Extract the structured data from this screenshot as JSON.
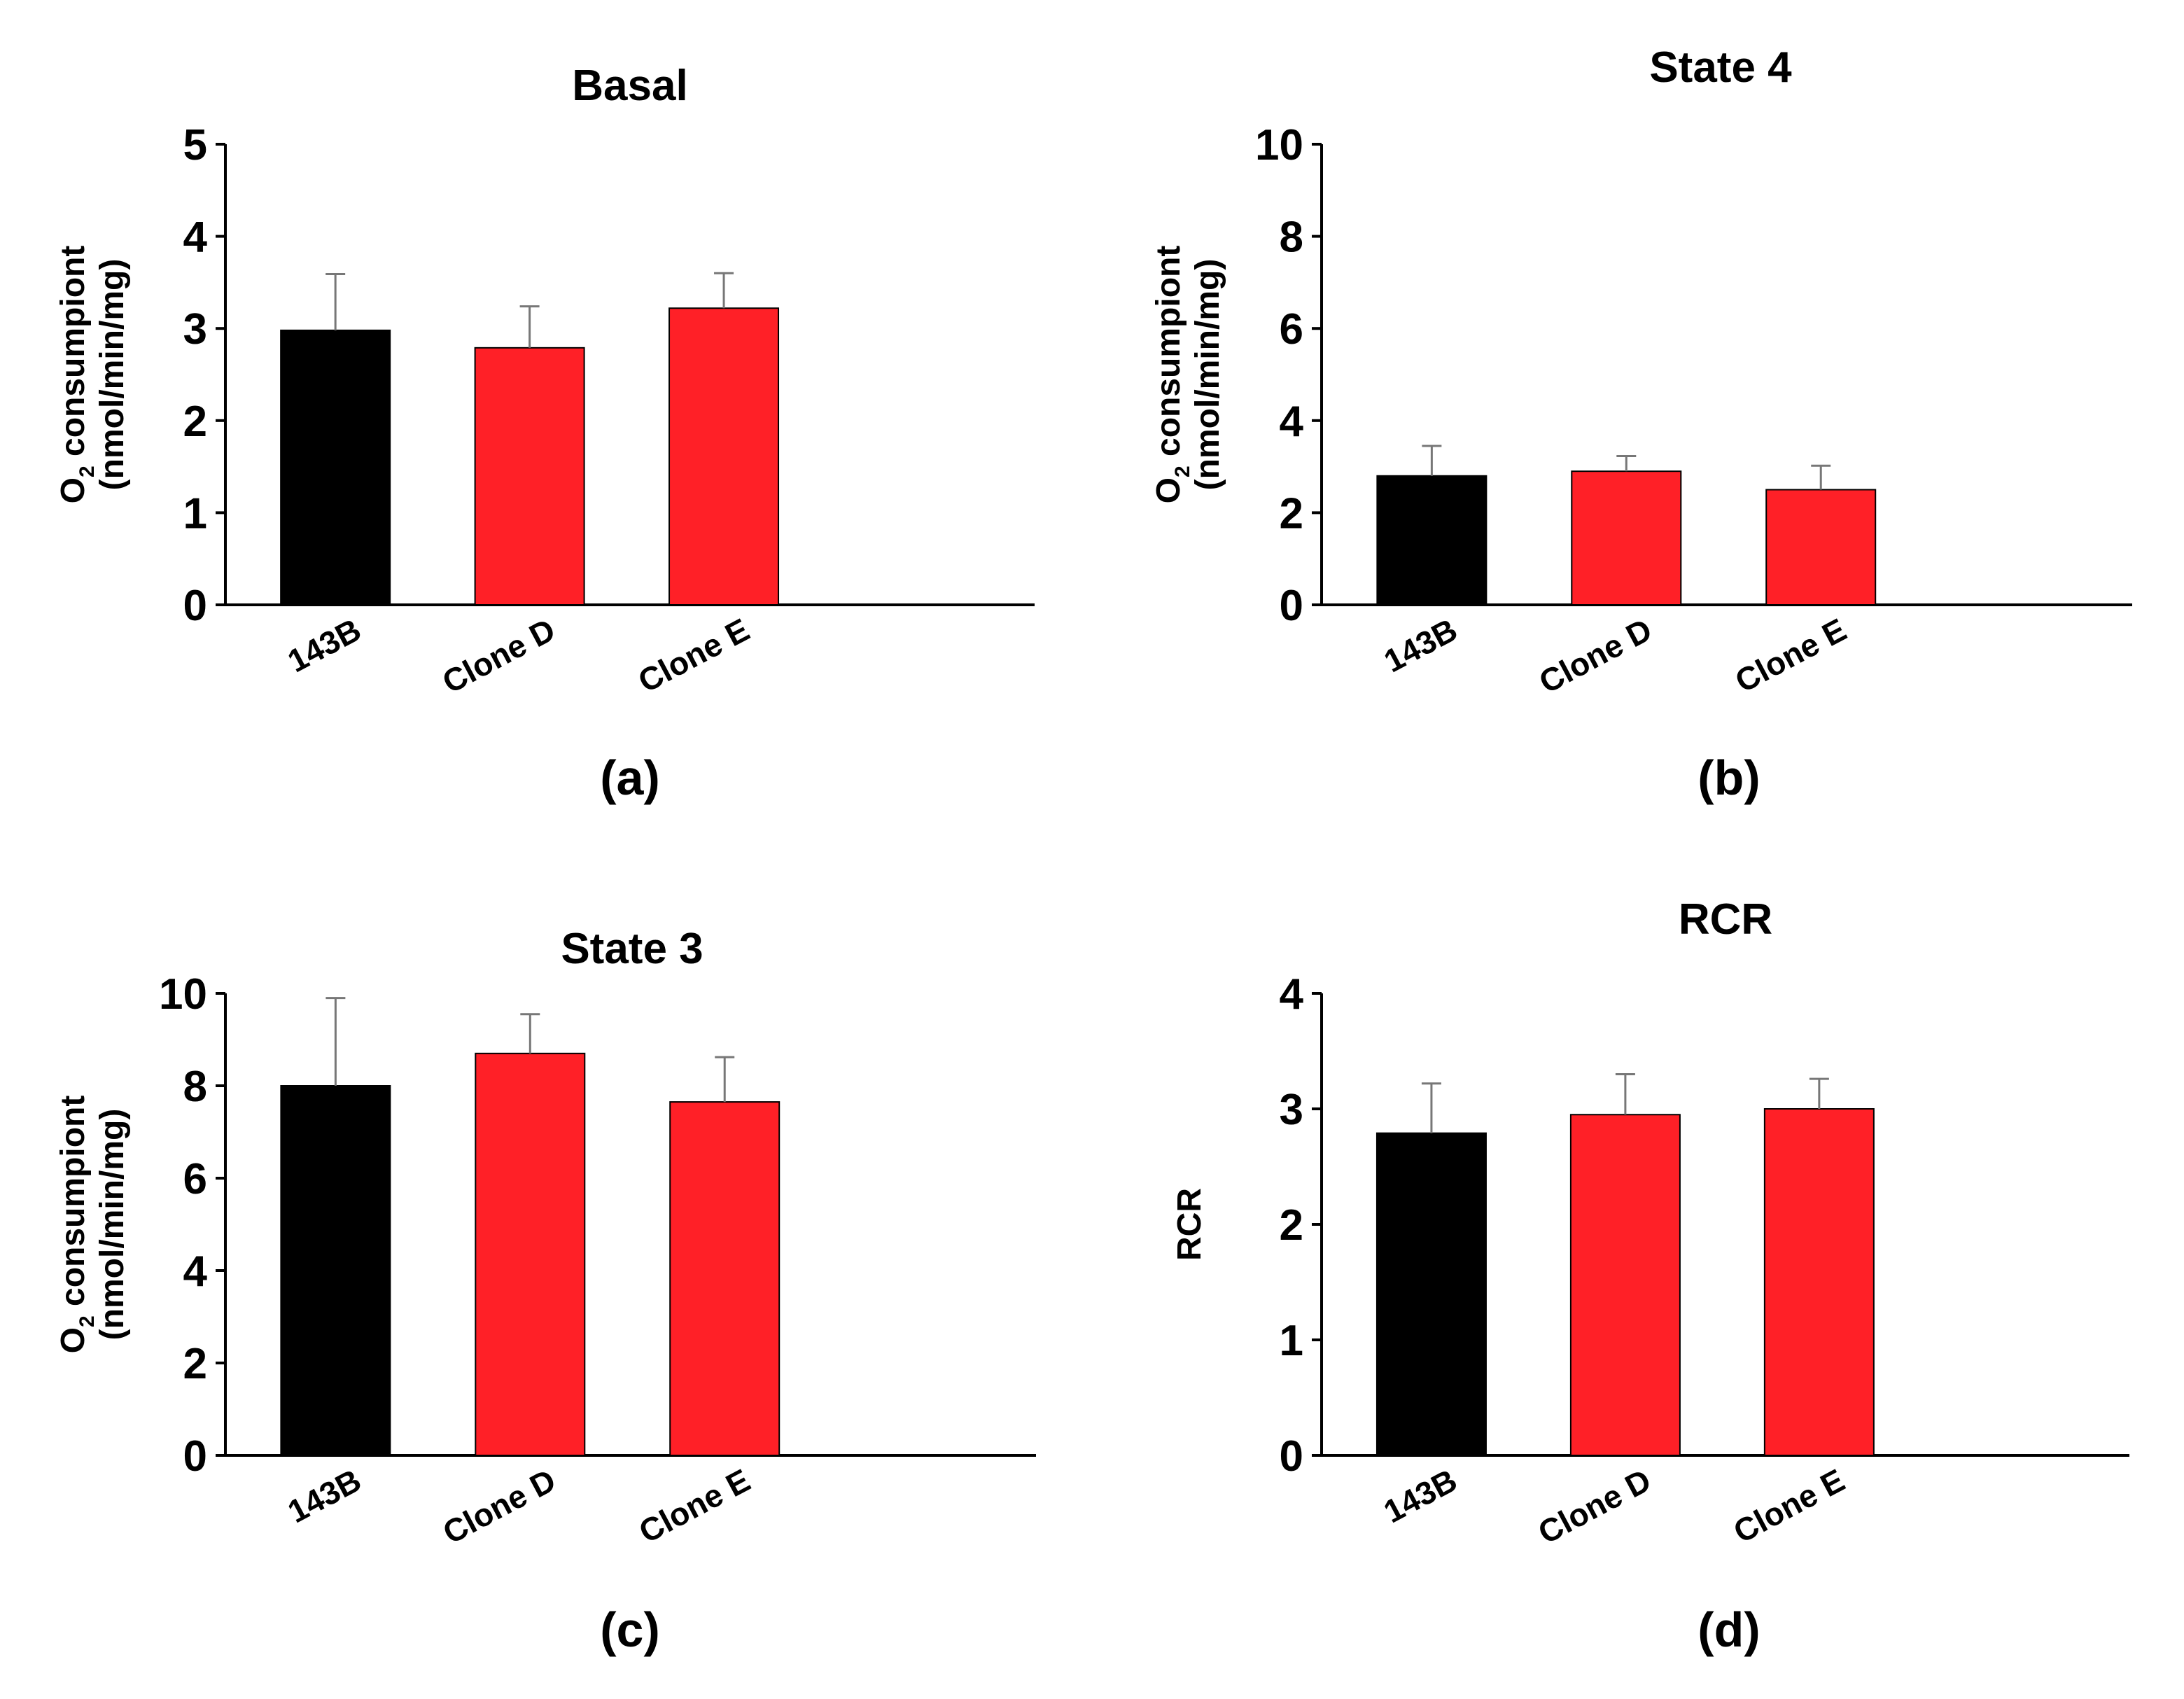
{
  "chart_data": [
    {
      "type": "bar",
      "title": "Basal",
      "categories": [
        "143B",
        "Clone D",
        "Clone E"
      ],
      "values": [
        2.98,
        2.79,
        3.22
      ],
      "errors": [
        0.61,
        0.45,
        0.38
      ],
      "colors": [
        "#000000",
        "#ff2027",
        "#ff2027"
      ],
      "ylim": [
        0,
        5
      ],
      "yticks": [
        "0",
        "1",
        "2",
        "3",
        "4",
        "5"
      ],
      "ylabel": {
        "prefix": "O",
        "sub": "2",
        "suffix": " consumpiont",
        "line2": "(nmol/min/mg)"
      },
      "panel_label": "(a)"
    },
    {
      "type": "bar",
      "title": "State 4",
      "categories": [
        "143B",
        "Clone D",
        "Clone E"
      ],
      "values": [
        2.8,
        2.9,
        2.5
      ],
      "errors": [
        0.65,
        0.33,
        0.52
      ],
      "colors": [
        "#000000",
        "#ff2027",
        "#ff2027"
      ],
      "ylim": [
        0,
        10
      ],
      "yticks": [
        "0",
        "2",
        "4",
        "6",
        "8",
        "10"
      ],
      "ylabel": {
        "prefix": "O",
        "sub": "2",
        "suffix": " consumpiont",
        "line2": "(nmol/min/mg)"
      },
      "panel_label": "(b)"
    },
    {
      "type": "bar",
      "title": "State 3",
      "categories": [
        "143B",
        "Clone D",
        "Clone E"
      ],
      "values": [
        8.0,
        8.7,
        7.65
      ],
      "errors": [
        1.9,
        0.85,
        0.97
      ],
      "colors": [
        "#000000",
        "#ff2027",
        "#ff2027"
      ],
      "ylim": [
        0,
        10
      ],
      "yticks": [
        "0",
        "2",
        "4",
        "6",
        "8",
        "10"
      ],
      "ylabel": {
        "prefix": "O",
        "sub": "2",
        "suffix": " consumpiont",
        "line2": "(nmol/min/mg)"
      },
      "panel_label": "(c)"
    },
    {
      "type": "bar",
      "title": "RCR",
      "categories": [
        "143B",
        "Clone D",
        "Clone E"
      ],
      "values": [
        2.79,
        2.95,
        3.0
      ],
      "errors": [
        0.43,
        0.35,
        0.26
      ],
      "colors": [
        "#000000",
        "#ff2027",
        "#ff2027"
      ],
      "ylim": [
        0,
        4
      ],
      "yticks": [
        "0",
        "1",
        "2",
        "3",
        "4"
      ],
      "ylabel": {
        "prefix": "",
        "sub": "",
        "suffix": "RCR",
        "line2": ""
      },
      "panel_label": "(d)"
    }
  ]
}
